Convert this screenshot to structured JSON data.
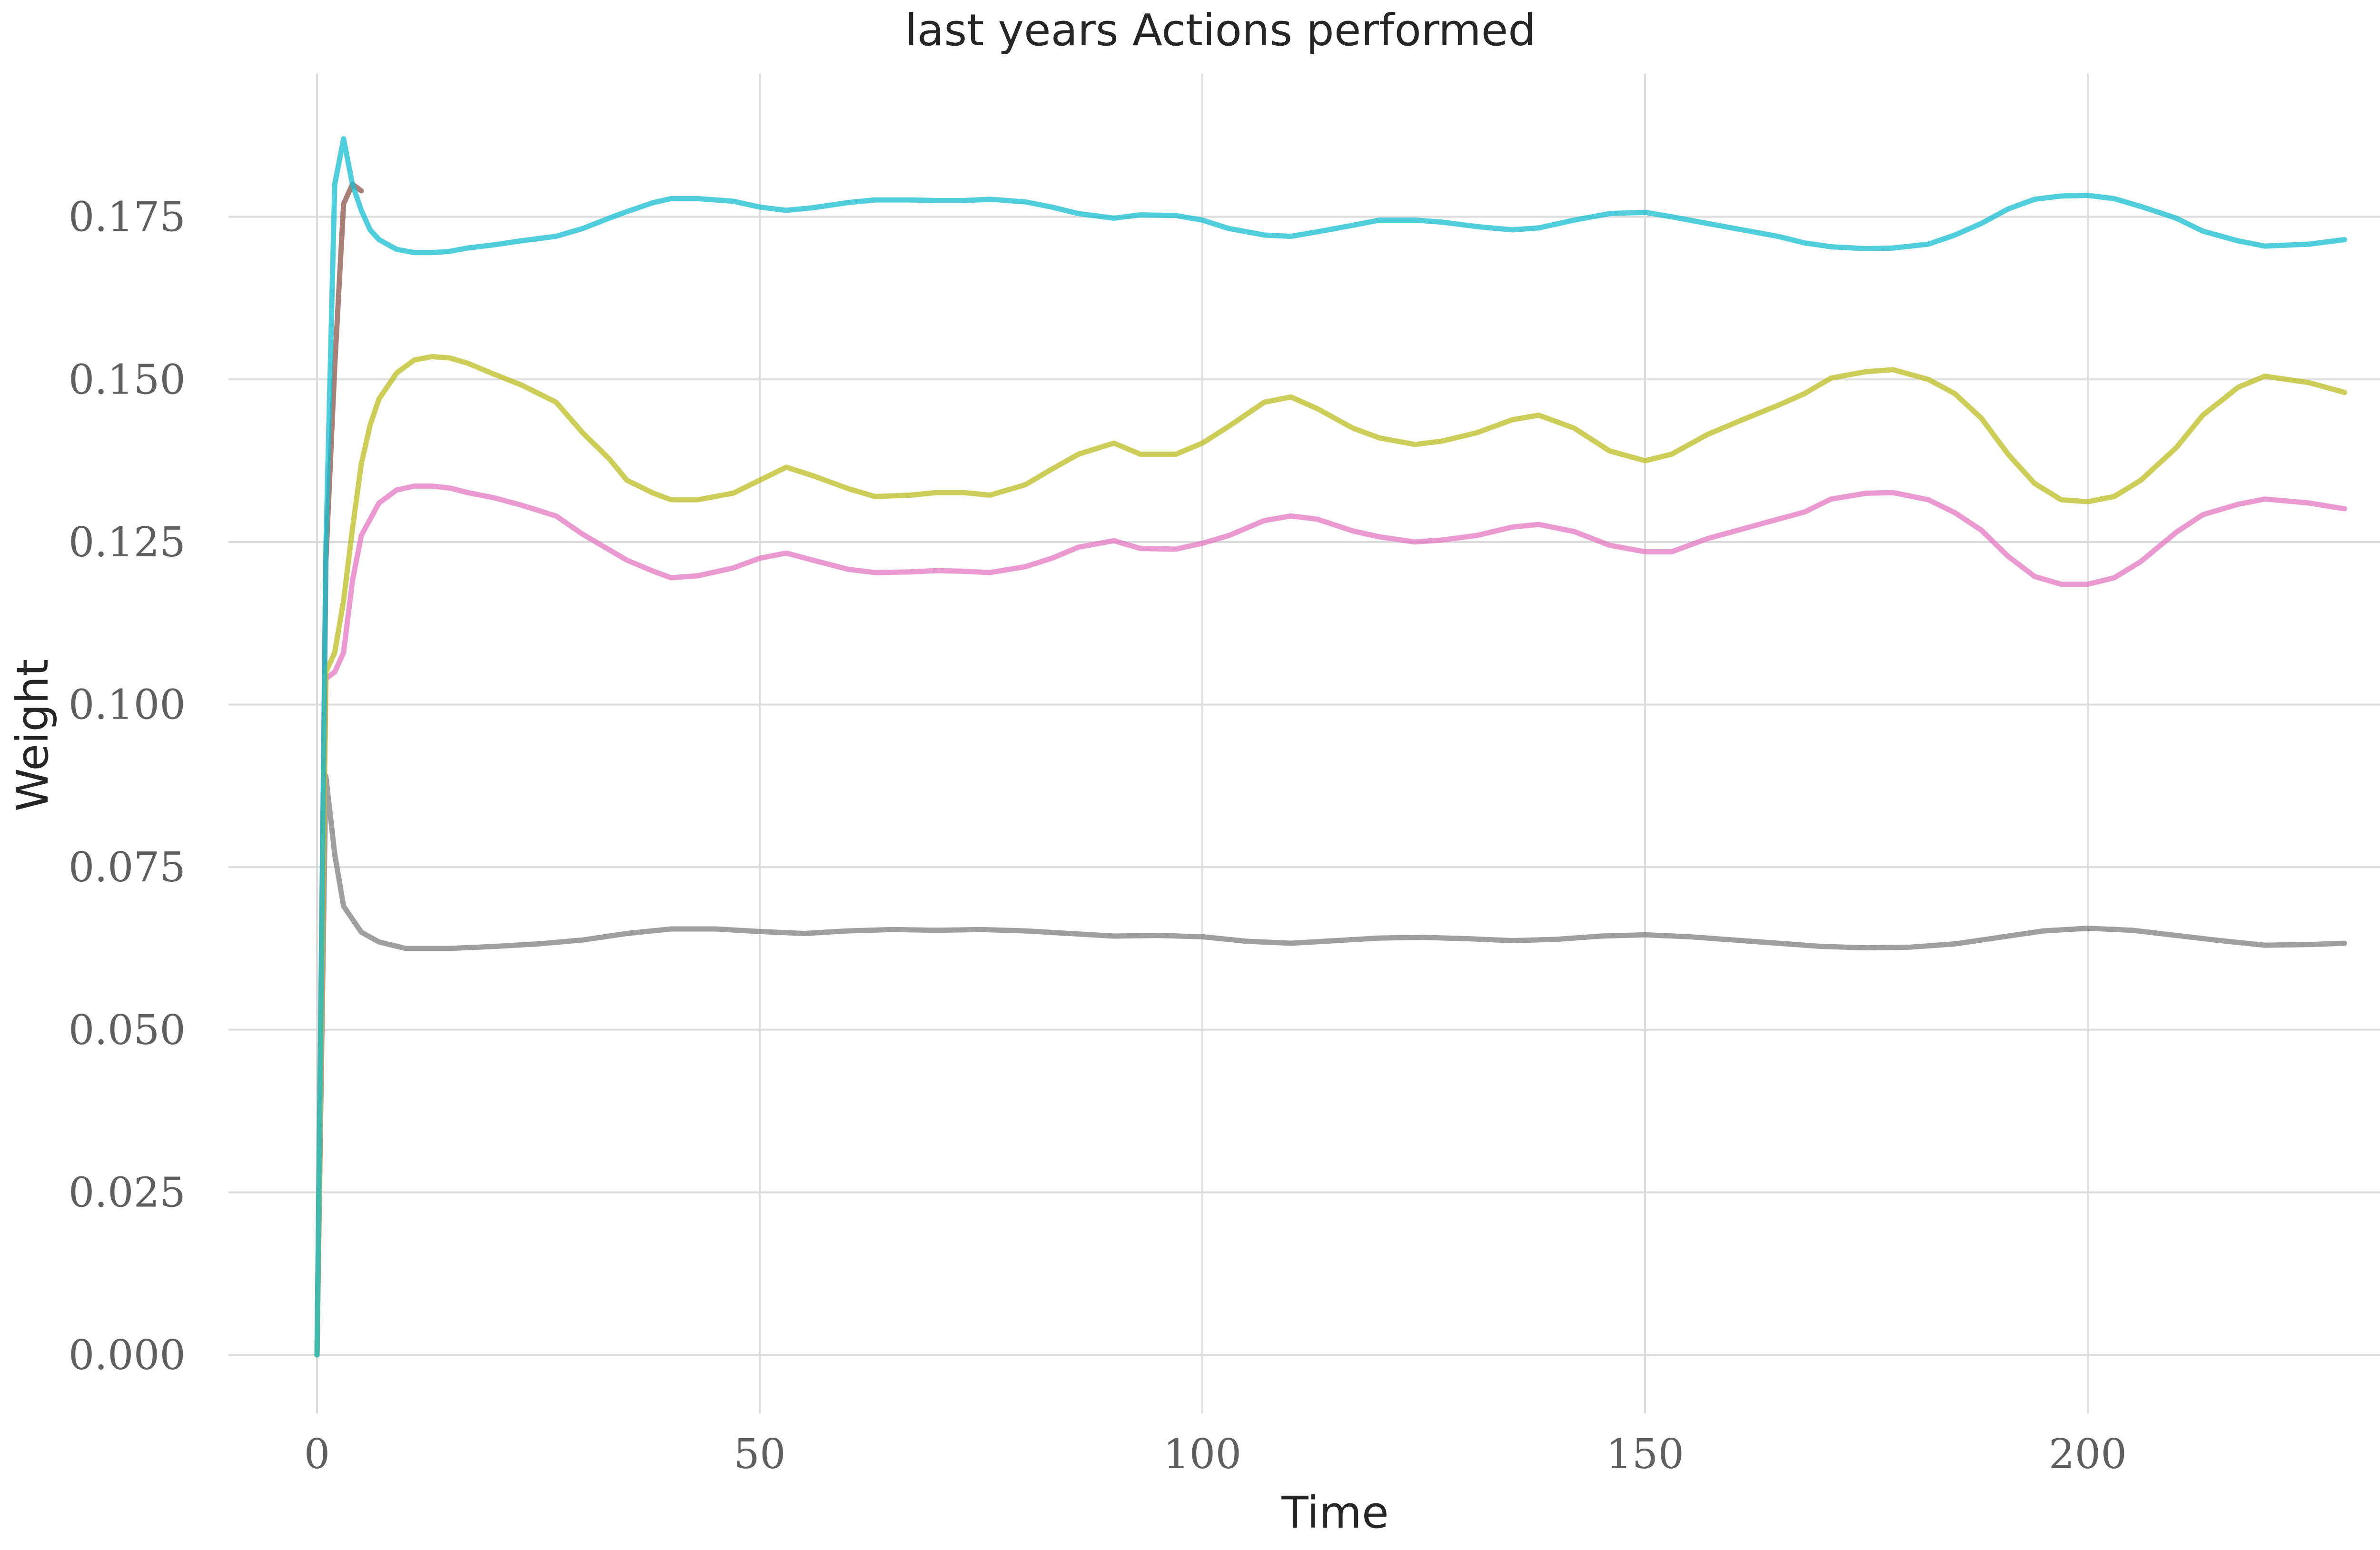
{
  "chart_data": {
    "type": "line",
    "title": "last years Actions performed",
    "xlabel": "Time",
    "ylabel": "Weight",
    "xlim": [
      -10,
      240
    ],
    "ylim": [
      -0.009,
      0.197
    ],
    "xticks": [
      0,
      50,
      100,
      150,
      200
    ],
    "yticks": [
      0.0,
      0.025,
      0.05,
      0.075,
      0.1,
      0.125,
      0.15,
      0.175
    ],
    "ytick_labels": [
      "0.000",
      "0.025",
      "0.050",
      "0.075",
      "0.100",
      "0.125",
      "0.150",
      "0.175"
    ],
    "grid": true,
    "legend": "none",
    "series": [
      {
        "color": "#8c564b",
        "x": [
          0,
          1,
          2,
          3,
          4,
          5
        ],
        "y": [
          0.0,
          0.122,
          0.152,
          0.177,
          0.18,
          0.179
        ]
      },
      {
        "color": "#7f7f7f",
        "x": [
          0,
          1,
          2,
          3,
          5,
          7,
          10,
          15,
          20,
          25,
          30,
          35,
          40,
          45,
          50,
          55,
          60,
          65,
          70,
          75,
          80,
          85,
          90,
          95,
          100,
          105,
          110,
          115,
          120,
          125,
          130,
          135,
          140,
          145,
          150,
          155,
          160,
          165,
          170,
          175,
          180,
          185,
          190,
          195,
          200,
          205,
          210,
          215,
          220,
          225,
          229
        ],
        "y": [
          0.0,
          0.089,
          0.077,
          0.069,
          0.065,
          0.0635,
          0.0625,
          0.0625,
          0.0628,
          0.0632,
          0.0638,
          0.0648,
          0.0655,
          0.0655,
          0.0651,
          0.0648,
          0.0652,
          0.0654,
          0.0653,
          0.0654,
          0.0652,
          0.0648,
          0.0644,
          0.0645,
          0.0643,
          0.0636,
          0.0633,
          0.0637,
          0.0641,
          0.0642,
          0.064,
          0.0637,
          0.0639,
          0.0644,
          0.0646,
          0.0643,
          0.0638,
          0.0633,
          0.0628,
          0.0626,
          0.0627,
          0.0632,
          0.0642,
          0.0652,
          0.0656,
          0.0653,
          0.0645,
          0.0637,
          0.063,
          0.0631,
          0.0633
        ]
      },
      {
        "color": "#e377c2",
        "x": [
          0,
          1,
          2,
          3,
          4,
          5,
          7,
          9,
          11,
          13,
          15,
          17,
          20,
          23,
          27,
          30,
          33,
          35,
          38,
          40,
          43,
          47,
          50,
          53,
          56,
          60,
          63,
          67,
          70,
          73,
          76,
          80,
          83,
          86,
          90,
          93,
          97,
          100,
          103,
          107,
          110,
          113,
          117,
          120,
          124,
          127,
          131,
          135,
          138,
          142,
          146,
          150,
          153,
          157,
          161,
          165,
          168,
          171,
          175,
          178,
          182,
          185,
          188,
          191,
          194,
          197,
          200,
          203,
          206,
          210,
          213,
          217,
          220,
          225,
          229
        ],
        "y": [
          0.0,
          0.104,
          0.105,
          0.108,
          0.119,
          0.126,
          0.131,
          0.133,
          0.1336,
          0.1336,
          0.1333,
          0.1326,
          0.1318,
          0.1307,
          0.129,
          0.1262,
          0.1238,
          0.1222,
          0.1205,
          0.1195,
          0.1198,
          0.121,
          0.1225,
          0.1233,
          0.1222,
          0.1208,
          0.1203,
          0.1204,
          0.1206,
          0.1205,
          0.1203,
          0.1212,
          0.1225,
          0.1242,
          0.1252,
          0.124,
          0.1239,
          0.1248,
          0.126,
          0.1283,
          0.129,
          0.1285,
          0.1267,
          0.1258,
          0.125,
          0.1253,
          0.126,
          0.1273,
          0.1277,
          0.1266,
          0.1245,
          0.1235,
          0.1235,
          0.1255,
          0.127,
          0.1285,
          0.1296,
          0.1316,
          0.1325,
          0.1326,
          0.1315,
          0.1295,
          0.1268,
          0.1228,
          0.1197,
          0.1185,
          0.1185,
          0.1195,
          0.122,
          0.1265,
          0.1292,
          0.1308,
          0.1316,
          0.131,
          0.1301
        ]
      },
      {
        "color": "#bcbd22",
        "x": [
          0,
          1,
          2,
          3,
          4,
          5,
          6,
          7,
          9,
          11,
          13,
          15,
          17,
          20,
          23,
          27,
          30,
          33,
          35,
          38,
          40,
          43,
          47,
          50,
          53,
          56,
          60,
          63,
          67,
          70,
          73,
          76,
          80,
          83,
          86,
          90,
          93,
          97,
          100,
          103,
          107,
          110,
          113,
          117,
          120,
          124,
          127,
          131,
          135,
          138,
          142,
          146,
          150,
          153,
          157,
          161,
          165,
          168,
          171,
          175,
          178,
          182,
          185,
          188,
          191,
          194,
          197,
          200,
          203,
          206,
          210,
          213,
          217,
          220,
          225,
          229
        ],
        "y": [
          0.0,
          0.105,
          0.108,
          0.116,
          0.127,
          0.137,
          0.143,
          0.147,
          0.151,
          0.153,
          0.1535,
          0.1533,
          0.1525,
          0.1508,
          0.1492,
          0.1465,
          0.1418,
          0.1378,
          0.1345,
          0.1325,
          0.1315,
          0.1315,
          0.1325,
          0.1345,
          0.1365,
          0.1352,
          0.1332,
          0.132,
          0.1322,
          0.1326,
          0.1326,
          0.1322,
          0.1338,
          0.1362,
          0.1385,
          0.1402,
          0.1385,
          0.1385,
          0.1402,
          0.1428,
          0.1465,
          0.1473,
          0.1455,
          0.1425,
          0.141,
          0.14,
          0.1405,
          0.1418,
          0.1438,
          0.1445,
          0.1425,
          0.139,
          0.1375,
          0.1385,
          0.1415,
          0.1438,
          0.146,
          0.1478,
          0.1502,
          0.1512,
          0.1515,
          0.15,
          0.1478,
          0.144,
          0.1385,
          0.134,
          0.1315,
          0.1312,
          0.132,
          0.1345,
          0.1395,
          0.1445,
          0.1488,
          0.1505,
          0.1495,
          0.148
        ]
      },
      {
        "color": "#17becf",
        "x": [
          0,
          1,
          2,
          3,
          4,
          5,
          6,
          7,
          9,
          11,
          13,
          15,
          17,
          20,
          23,
          27,
          30,
          33,
          35,
          38,
          40,
          43,
          47,
          50,
          53,
          56,
          60,
          63,
          67,
          70,
          73,
          76,
          80,
          83,
          86,
          90,
          93,
          97,
          100,
          103,
          107,
          110,
          113,
          117,
          120,
          124,
          127,
          131,
          135,
          138,
          142,
          146,
          150,
          153,
          157,
          161,
          165,
          168,
          171,
          175,
          178,
          182,
          185,
          188,
          191,
          194,
          197,
          200,
          203,
          206,
          210,
          213,
          217,
          220,
          225,
          229
        ],
        "y": [
          0.0,
          0.124,
          0.18,
          0.187,
          0.18,
          0.176,
          0.173,
          0.1715,
          0.17,
          0.1695,
          0.1695,
          0.1697,
          0.1702,
          0.1707,
          0.1713,
          0.172,
          0.1732,
          0.1748,
          0.1758,
          0.1772,
          0.1778,
          0.1778,
          0.1774,
          0.1765,
          0.176,
          0.1764,
          0.1772,
          0.1776,
          0.1776,
          0.1775,
          0.1775,
          0.1777,
          0.1773,
          0.1765,
          0.1755,
          0.1748,
          0.1753,
          0.1752,
          0.1745,
          0.1732,
          0.1722,
          0.172,
          0.1727,
          0.1737,
          0.1745,
          0.1745,
          0.1742,
          0.1735,
          0.173,
          0.1733,
          0.1745,
          0.1755,
          0.1757,
          0.175,
          0.174,
          0.173,
          0.172,
          0.171,
          0.1704,
          0.1701,
          0.1702,
          0.1708,
          0.1722,
          0.174,
          0.1762,
          0.1777,
          0.1782,
          0.1783,
          0.1778,
          0.1766,
          0.1748,
          0.1728,
          0.1713,
          0.1705,
          0.1708,
          0.1715
        ]
      }
    ]
  }
}
